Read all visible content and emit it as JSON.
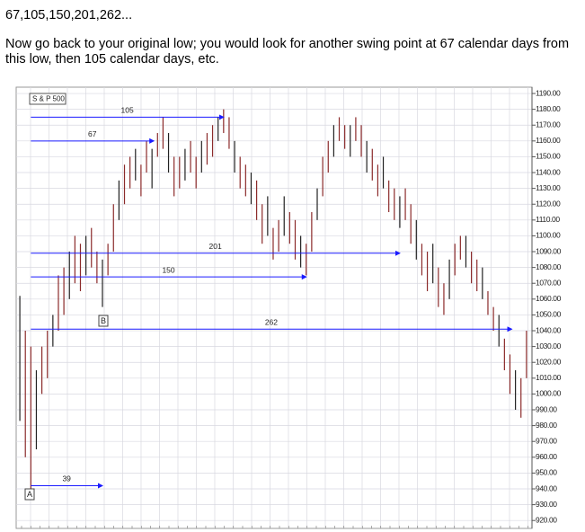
{
  "heading": "67,105,150,201,262...",
  "paragraph": "Now go back to your original low; you would look for another swing point at 67 calendar days from this low, then 105 calendar days, etc.",
  "chart_data": {
    "type": "range-bar",
    "labels": {
      "a": "A",
      "b": "B"
    },
    "xlim": [
      -8,
      273
    ],
    "ylim": [
      915,
      1194
    ],
    "yticks": [
      {
        "value": 920,
        "label": "920.00"
      },
      {
        "value": 930,
        "label": "930.00"
      },
      {
        "value": 940,
        "label": "940.00"
      },
      {
        "value": 950,
        "label": "950.00"
      },
      {
        "value": 960,
        "label": "960.00"
      },
      {
        "value": 970,
        "label": "970.00"
      },
      {
        "value": 980,
        "label": "980.00"
      },
      {
        "value": 990,
        "label": "990.00"
      },
      {
        "value": 1000,
        "label": "1000.00"
      },
      {
        "value": 1010,
        "label": "1010.00"
      },
      {
        "value": 1020,
        "label": "1020.00"
      },
      {
        "value": 1030,
        "label": "1030.00"
      },
      {
        "value": 1040,
        "label": "1040.00"
      },
      {
        "value": 1050,
        "label": "1050.00"
      },
      {
        "value": 1060,
        "label": "1060.00"
      },
      {
        "value": 1070,
        "label": "1070.00"
      },
      {
        "value": 1080,
        "label": "1080.00"
      },
      {
        "value": 1090,
        "label": "1090.00"
      },
      {
        "value": 1100,
        "label": "1100.00"
      },
      {
        "value": 1110,
        "label": "1110.00"
      },
      {
        "value": 1120,
        "label": "1120.00"
      },
      {
        "value": 1130,
        "label": "1130.00"
      },
      {
        "value": 1140,
        "label": "1140.00"
      },
      {
        "value": 1150,
        "label": "1150.00"
      },
      {
        "value": 1160,
        "label": "1160.00"
      },
      {
        "value": 1170,
        "label": "1170.00"
      },
      {
        "value": 1180,
        "label": "1180.00"
      },
      {
        "value": 1190,
        "label": "1190.00"
      }
    ],
    "grid": true,
    "series": [
      {
        "name": "S & P 500",
        "color": "#8b2a2a",
        "x": [
          -6,
          -3,
          0,
          3,
          6,
          9,
          12,
          15,
          18,
          21,
          24,
          27,
          30,
          33,
          36,
          39,
          42,
          45,
          48,
          51,
          54,
          57,
          60,
          63,
          66,
          69,
          72,
          75,
          78,
          81,
          84,
          87,
          90,
          93,
          96,
          99,
          102,
          105,
          108,
          111,
          114,
          117,
          120,
          123,
          126,
          129,
          132,
          135,
          138,
          141,
          144,
          147,
          150,
          153,
          156,
          159,
          162,
          165,
          168,
          171,
          174,
          177,
          180,
          183,
          186,
          189,
          192,
          195,
          198,
          201,
          204,
          207,
          210,
          213,
          216,
          219,
          222,
          225,
          228,
          231,
          234,
          237,
          240,
          243,
          246,
          249,
          252,
          255,
          258,
          261,
          264,
          267,
          270
        ],
        "high": [
          1062,
          1040,
          1030,
          1015,
          1030,
          1040,
          1050,
          1075,
          1080,
          1090,
          1100,
          1095,
          1100,
          1105,
          1090,
          1085,
          1095,
          1120,
          1135,
          1145,
          1150,
          1155,
          1145,
          1160,
          1155,
          1165,
          1175,
          1165,
          1150,
          1150,
          1155,
          1160,
          1150,
          1160,
          1165,
          1170,
          1175,
          1180,
          1175,
          1160,
          1150,
          1145,
          1140,
          1135,
          1120,
          1125,
          1105,
          1110,
          1125,
          1115,
          1110,
          1100,
          1095,
          1115,
          1130,
          1150,
          1160,
          1170,
          1175,
          1170,
          1170,
          1175,
          1170,
          1160,
          1155,
          1145,
          1150,
          1135,
          1130,
          1125,
          1130,
          1120,
          1110,
          1095,
          1090,
          1095,
          1080,
          1070,
          1085,
          1095,
          1100,
          1100,
          1090,
          1085,
          1080,
          1065,
          1055,
          1050,
          1035,
          1025,
          1015,
          1010,
          1040
        ],
        "low": [
          983,
          960,
          940,
          965,
          1000,
          1010,
          1030,
          1040,
          1050,
          1060,
          1070,
          1065,
          1075,
          1080,
          1070,
          1055,
          1075,
          1090,
          1110,
          1120,
          1130,
          1135,
          1125,
          1140,
          1130,
          1150,
          1155,
          1140,
          1125,
          1130,
          1135,
          1140,
          1130,
          1140,
          1145,
          1150,
          1160,
          1165,
          1155,
          1140,
          1130,
          1125,
          1120,
          1110,
          1095,
          1100,
          1085,
          1090,
          1100,
          1095,
          1085,
          1080,
          1075,
          1090,
          1110,
          1125,
          1140,
          1150,
          1160,
          1155,
          1150,
          1160,
          1150,
          1140,
          1135,
          1125,
          1130,
          1115,
          1110,
          1105,
          1110,
          1095,
          1085,
          1075,
          1065,
          1070,
          1055,
          1050,
          1060,
          1075,
          1085,
          1080,
          1070,
          1065,
          1060,
          1050,
          1040,
          1030,
          1015,
          1000,
          990,
          985,
          1010
        ]
      }
    ],
    "swing_lines": {
      "color": "#1a1aff",
      "lines": [
        {
          "days": 105,
          "price": 1175
        },
        {
          "days": 67,
          "price": 1160
        },
        {
          "days": 201,
          "price": 1089
        },
        {
          "days": 150,
          "price": 1074
        },
        {
          "days": 262,
          "price": 1041
        },
        {
          "days": 39,
          "price": 942
        }
      ]
    }
  }
}
